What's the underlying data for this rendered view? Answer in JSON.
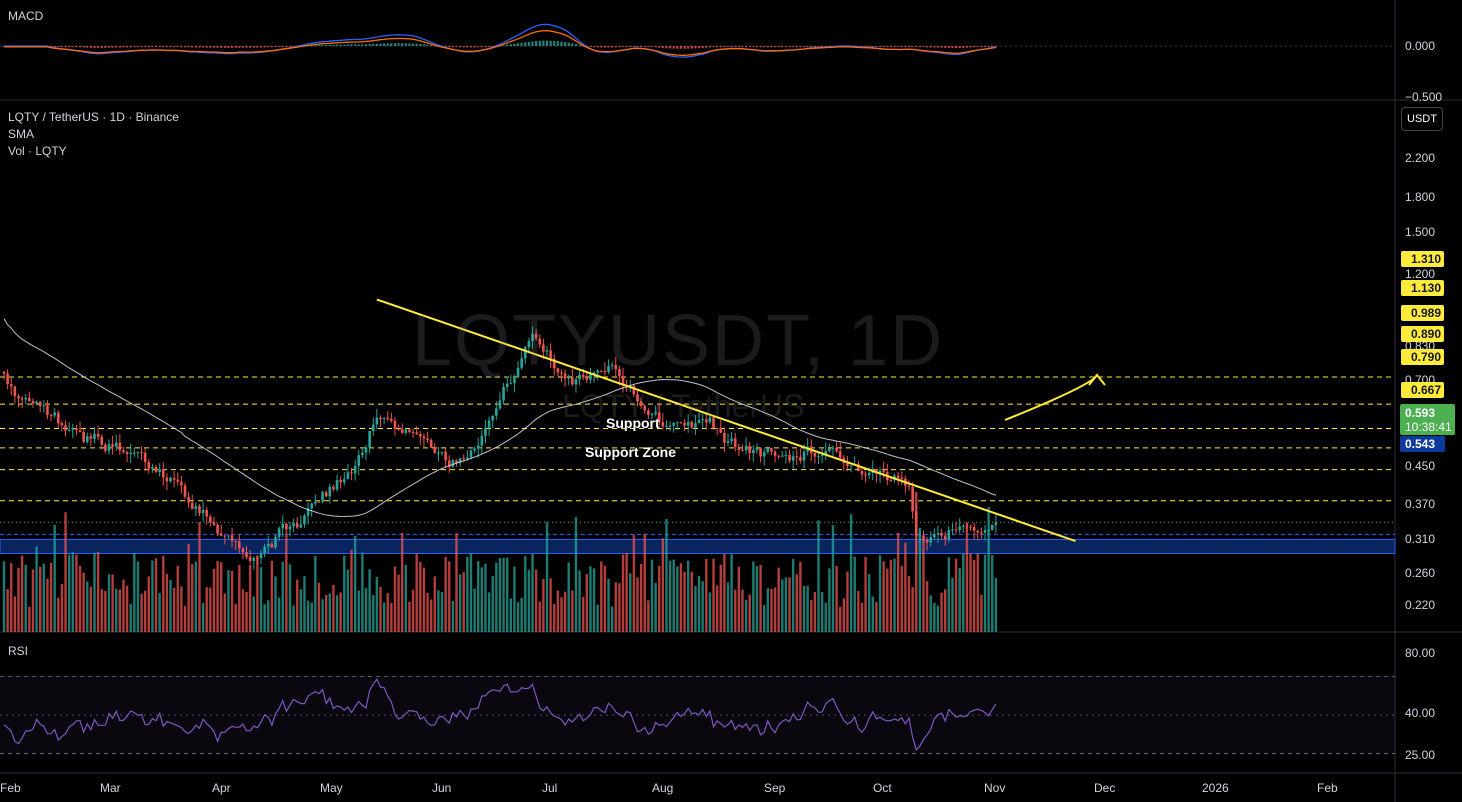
{
  "header": {
    "symbol_line": "LQTY / TetherUS · 1D · Binance",
    "indicator_sma": "SMA",
    "indicator_vol": "Vol · LQTY"
  },
  "watermark": {
    "main": "LQTYUSDT, 1D",
    "sub": "LQTY / TetherUS"
  },
  "currency_button": "USDT",
  "macd": {
    "label": "MACD",
    "ticks": [
      "0.000",
      "−0.500"
    ]
  },
  "rsi": {
    "label": "RSI",
    "ticks": [
      "80.00",
      "40.00",
      "25.00"
    ]
  },
  "price_axis": {
    "ticks": [
      "2.200",
      "1.800",
      "1.500",
      "1.200",
      "0.830",
      "0.700",
      "0.450",
      "0.370",
      "0.310",
      "0.260",
      "0.220"
    ]
  },
  "levels": [
    {
      "label": "1.310",
      "value": 1.31
    },
    {
      "label": "1.130",
      "value": 1.13
    },
    {
      "label": "0.989",
      "value": 0.989
    },
    {
      "label": "0.890",
      "value": 0.89
    },
    {
      "label": "0.790",
      "value": 0.79
    },
    {
      "label": "0.667",
      "value": 0.667
    }
  ],
  "last_price": {
    "value": "0.593",
    "countdown": "10:38:41"
  },
  "support_level": {
    "label": "0.543",
    "value": 0.543
  },
  "annotations": {
    "support": "Support",
    "support_zone": "Support Zone"
  },
  "time_axis": [
    "Feb",
    "Mar",
    "Apr",
    "May",
    "Jun",
    "Jul",
    "Aug",
    "Sep",
    "Oct",
    "Nov",
    "Dec",
    "2026",
    "Feb"
  ],
  "colors": {
    "up": "#26a69a",
    "down": "#ef5350",
    "level": "#ffeb3b",
    "rsi": "#7e57c2",
    "macd": "#2962ff",
    "signal": "#ff6d00",
    "sma": "#e0e3eb",
    "support_zone": "#0c2a6e"
  },
  "chart_data": {
    "type": "candlestick",
    "title": "LQTY / TetherUS · 1D · Binance",
    "y_scale": "log",
    "ylim": [
      0.2,
      2.4
    ],
    "legend": "none",
    "grid": false,
    "close_anchors": [
      {
        "date": "2025-01-28",
        "close": 1.62
      },
      {
        "date": "2025-02-03",
        "close": 1.18
      },
      {
        "date": "2025-02-20",
        "close": 0.98
      },
      {
        "date": "2025-03-05",
        "close": 0.87
      },
      {
        "date": "2025-03-20",
        "close": 0.74
      },
      {
        "date": "2025-04-09",
        "close": 0.48
      },
      {
        "date": "2025-04-20",
        "close": 0.58
      },
      {
        "date": "2025-05-05",
        "close": 0.75
      },
      {
        "date": "2025-05-14",
        "close": 1.05
      },
      {
        "date": "2025-05-25",
        "close": 0.96
      },
      {
        "date": "2025-06-05",
        "close": 0.82
      },
      {
        "date": "2025-06-15",
        "close": 1.06
      },
      {
        "date": "2025-06-26",
        "close": 1.66
      },
      {
        "date": "2025-07-05",
        "close": 1.3
      },
      {
        "date": "2025-07-18",
        "close": 1.4
      },
      {
        "date": "2025-08-01",
        "close": 1.0
      },
      {
        "date": "2025-08-12",
        "close": 1.04
      },
      {
        "date": "2025-08-22",
        "close": 0.88
      },
      {
        "date": "2025-09-02",
        "close": 0.85
      },
      {
        "date": "2025-09-17",
        "close": 0.89
      },
      {
        "date": "2025-09-25",
        "close": 0.77
      },
      {
        "date": "2025-10-08",
        "close": 0.72
      },
      {
        "date": "2025-10-10",
        "close": 0.55
      },
      {
        "date": "2025-10-20",
        "close": 0.57
      },
      {
        "date": "2025-10-28",
        "close": 0.56
      },
      {
        "date": "2025-11-01",
        "close": 0.593
      }
    ],
    "trendline": [
      {
        "date": "2025-05-14",
        "price": 2.0
      },
      {
        "date": "2025-11-23",
        "price": 0.535
      }
    ],
    "support_zone": [
      0.5,
      0.54
    ],
    "projected_target": 1.31,
    "macd_ylim": [
      -0.55,
      0.35
    ],
    "rsi_ylim": [
      20,
      85
    ],
    "rsi_bands": [
      70,
      30
    ]
  }
}
